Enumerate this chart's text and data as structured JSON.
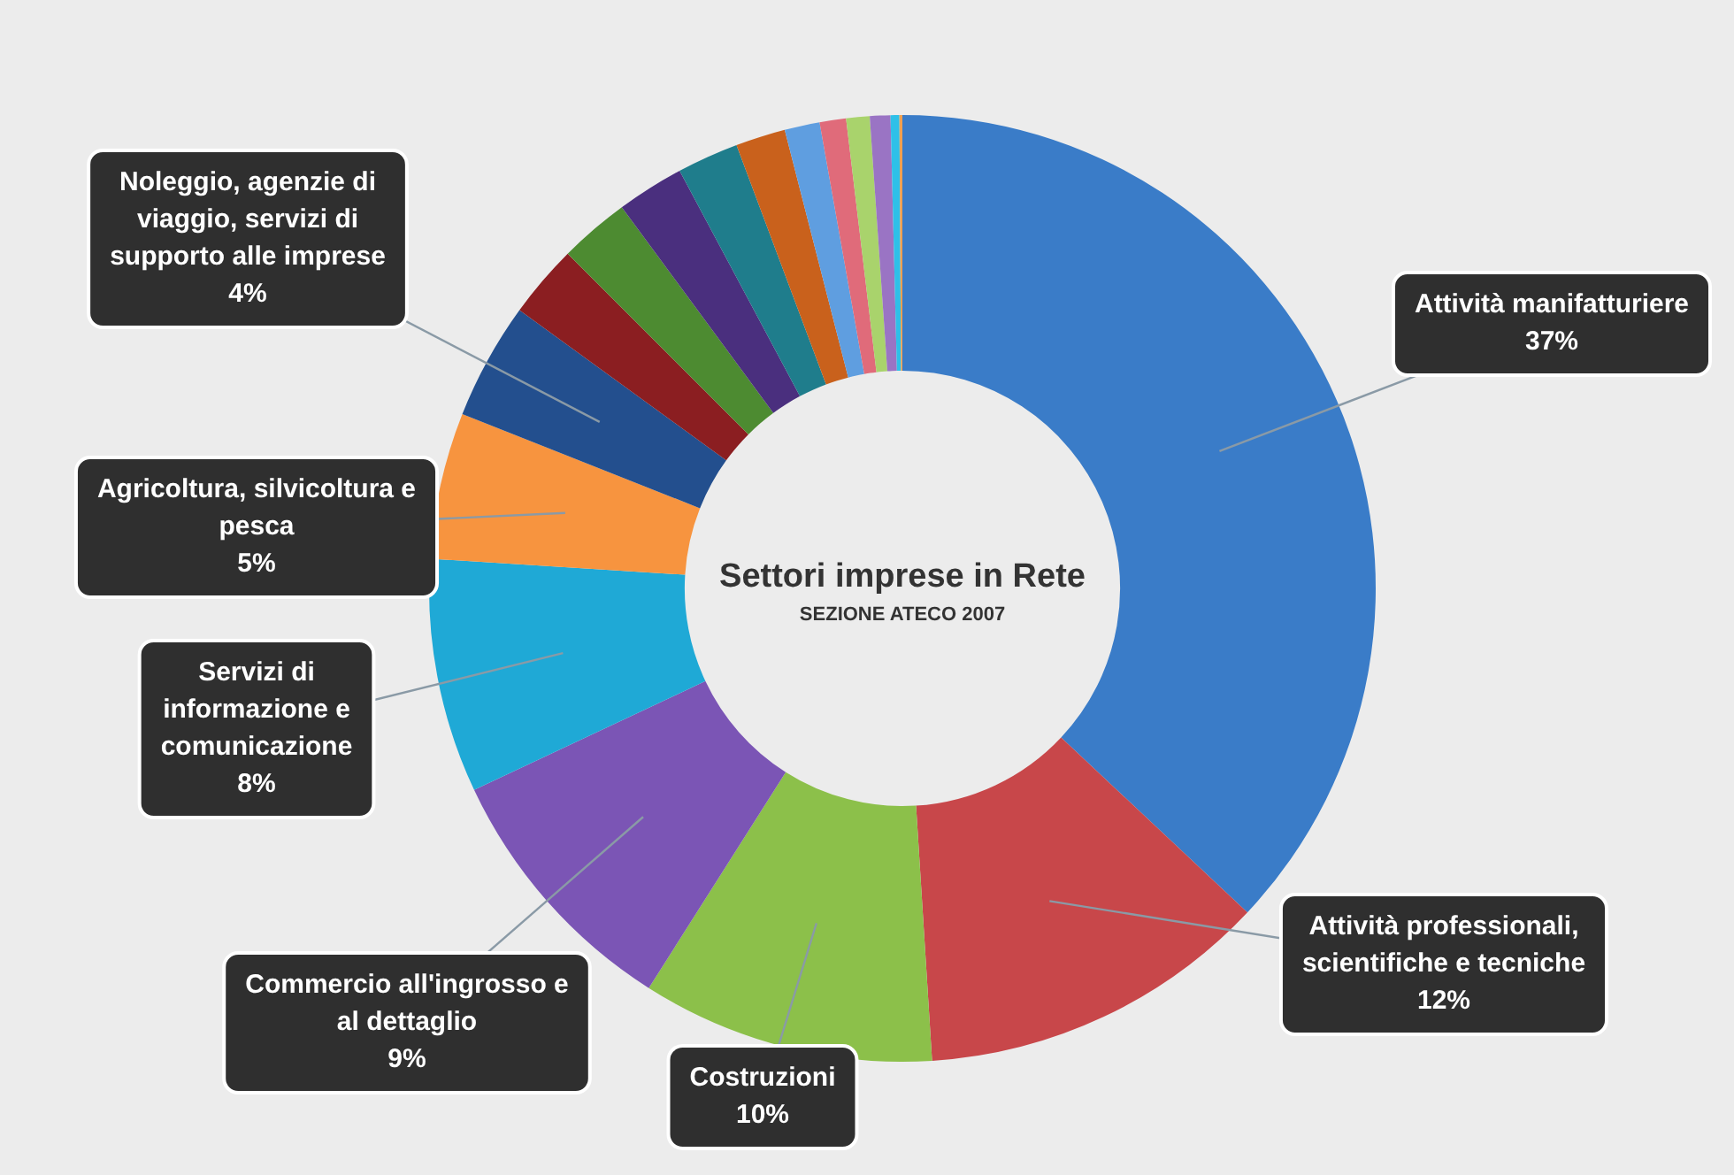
{
  "chart_data": {
    "type": "donut",
    "title": "Settori imprese in Rete",
    "subtitle": "SEZIONE ATECO 2007",
    "categories": [
      "Attività manifatturiere",
      "Attività professionali, scientifiche e tecniche",
      "Costruzioni",
      "Commercio all'ingrosso e al dettaglio",
      "Servizi di informazione e comunicazione",
      "Agricoltura, silvicoltura e pesca",
      "Noleggio, agenzie di viaggio, servizi di supporto alle imprese",
      null,
      null,
      null,
      null,
      null,
      null,
      null,
      null,
      null,
      null,
      null
    ],
    "values": [
      37,
      12,
      10,
      9,
      8,
      5,
      4,
      2.5,
      2.4,
      2.3,
      2.1,
      1.7,
      1.2,
      0.9,
      0.8,
      0.7,
      0.3,
      0.1
    ],
    "value_labels": [
      "37%",
      "12%",
      "10%",
      "9%",
      "8%",
      "5%",
      "4%",
      null,
      null,
      null,
      null,
      null,
      null,
      null,
      null,
      null,
      null,
      null
    ],
    "colors": [
      "#3a7cc8",
      "#c8474a",
      "#8cc04a",
      "#7b55b5",
      "#1fa9d6",
      "#f7943f",
      "#234f8e",
      "#8b1e21",
      "#4d8b31",
      "#4a2f7e",
      "#1f7d8c",
      "#c9611c",
      "#5f9ee0",
      "#e06b7a",
      "#a9d36c",
      "#9a74c4",
      "#2ec0e8",
      "#f0a050"
    ]
  }
}
